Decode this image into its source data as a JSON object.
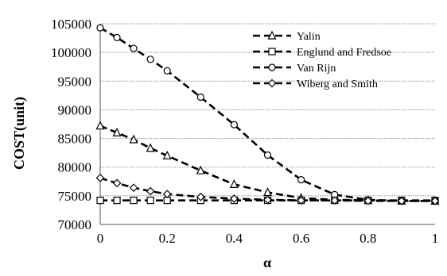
{
  "chart_data": {
    "type": "line",
    "title": "",
    "xlabel": "α",
    "ylabel": "COST(unit)",
    "xlim": [
      0,
      1
    ],
    "ylim": [
      70000,
      105000
    ],
    "xticks": [
      0,
      0.2,
      0.4,
      0.6,
      0.8,
      1
    ],
    "xtick_labels": [
      "0",
      "0.2",
      "0.4",
      "0.6",
      "0.8",
      "1"
    ],
    "yticks": [
      70000,
      75000,
      80000,
      85000,
      90000,
      95000,
      100000,
      105000
    ],
    "ytick_labels": [
      "70000",
      "75000",
      "80000",
      "85000",
      "90000",
      "95000",
      "100000",
      "105000"
    ],
    "grid": "horizontal",
    "legend_position": "top-right",
    "x": [
      0,
      0.05,
      0.1,
      0.15,
      0.2,
      0.3,
      0.4,
      0.5,
      0.6,
      0.7,
      0.8,
      0.9,
      1
    ],
    "series": [
      {
        "name": "Yalin",
        "marker": "triangle",
        "values": [
          87200,
          86000,
          84800,
          83300,
          82000,
          79400,
          77000,
          75600,
          74600,
          74300,
          74200,
          74100,
          74100
        ]
      },
      {
        "name": "Englund and Fredsoe",
        "marker": "square",
        "values": [
          74200,
          74200,
          74200,
          74200,
          74200,
          74200,
          74200,
          74200,
          74200,
          74200,
          74200,
          74200,
          74200
        ]
      },
      {
        "name": "Van Rijn",
        "marker": "circle",
        "values": [
          104300,
          102600,
          100700,
          98800,
          96800,
          92200,
          87400,
          82100,
          77800,
          75200,
          74300,
          74100,
          74100
        ]
      },
      {
        "name": "Wiberg and Smith",
        "marker": "diamond",
        "values": [
          78100,
          77200,
          76400,
          75800,
          75300,
          74800,
          74500,
          74300,
          74200,
          74200,
          74100,
          74100,
          74100
        ]
      }
    ]
  }
}
